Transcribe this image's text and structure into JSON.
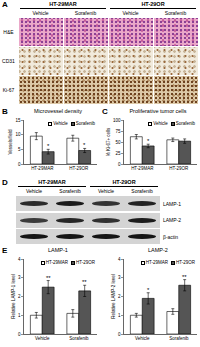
{
  "figure": {
    "A": {
      "label": "A",
      "groups": [
        "HT-29MAR",
        "HT-29OR"
      ],
      "columns": [
        "Vehicle",
        "Sorafenib",
        "Vehicle",
        "Sorafenib"
      ],
      "rows": [
        "H&E",
        "CD31",
        "Ki-67"
      ]
    },
    "D": {
      "label": "D",
      "groups": [
        "HT-29MAR",
        "HT-29OR"
      ],
      "lanes": [
        "Vehicle",
        "Sorafenib",
        "Vehicle",
        "Sorafenib"
      ],
      "bands": [
        "LAMP-1",
        "LAMP-2",
        "β-actin"
      ]
    }
  },
  "chart_data": [
    {
      "panel": "B",
      "type": "bar",
      "title": "Microvessel density",
      "y_label": "Vessels/field",
      "categories": [
        "HT-29MAR",
        "HT-29OR"
      ],
      "series": [
        {
          "name": "Vehicle",
          "color": "#ffffff",
          "values": [
            9.5,
            8.8
          ],
          "errors": [
            1.2,
            1.0
          ]
        },
        {
          "name": "Sorafenib",
          "color": "#555555",
          "values": [
            4.2,
            4.6
          ],
          "errors": [
            0.8,
            0.7
          ],
          "marks": [
            "*",
            "*"
          ]
        }
      ],
      "ylim": [
        0,
        15
      ],
      "yticks": [
        0,
        5,
        10,
        15
      ],
      "grid": false,
      "legend": "top right"
    },
    {
      "panel": "C",
      "type": "bar",
      "title": "Proliferative tumor cells",
      "y_label": "% Ki-67+ cells",
      "categories": [
        "HT-29MAR",
        "HT-29OR"
      ],
      "series": [
        {
          "name": "Vehicle",
          "color": "#ffffff",
          "values": [
            62,
            55
          ],
          "errors": [
            5,
            4
          ]
        },
        {
          "name": "Sorafenib",
          "color": "#555555",
          "values": [
            41,
            52
          ],
          "errors": [
            4,
            5
          ],
          "marks": [
            "*",
            null
          ]
        }
      ],
      "ylim": [
        0,
        100
      ],
      "yticks": [
        0,
        25,
        50,
        75,
        100
      ],
      "grid": false,
      "legend": "top right"
    },
    {
      "panel": "E",
      "type": "bar",
      "title": "LAMP-1",
      "y_label": "Relative LAMP-1 level",
      "categories": [
        "Vehicle",
        "Sorafenib"
      ],
      "series": [
        {
          "name": "HT-29MAR",
          "color": "#ffffff",
          "values": [
            1.0,
            1.1
          ],
          "errors": [
            0.15,
            0.2
          ]
        },
        {
          "name": "HT-29OR",
          "color": "#555555",
          "values": [
            2.5,
            2.3
          ],
          "errors": [
            0.35,
            0.3
          ],
          "marks": [
            "**",
            "**"
          ]
        }
      ],
      "ylim": [
        0,
        4
      ],
      "yticks": [
        0,
        1,
        2,
        3,
        4
      ],
      "grid": false,
      "legend": "top right"
    },
    {
      "title": "LAMP-2",
      "type": "bar",
      "y_label": "Relative LAMP-2 level",
      "categories": [
        "Vehicle",
        "Sorafenib"
      ],
      "series": [
        {
          "name": "HT-29MAR",
          "color": "#ffffff",
          "values": [
            1.0,
            1.2
          ],
          "errors": [
            0.1,
            0.15
          ]
        },
        {
          "name": "HT-29OR",
          "color": "#555555",
          "values": [
            1.9,
            2.6
          ],
          "errors": [
            0.3,
            0.3
          ],
          "marks": [
            "*",
            "**"
          ]
        }
      ],
      "ylim": [
        0,
        4
      ],
      "yticks": [
        0,
        1,
        2,
        3,
        4
      ],
      "grid": false,
      "legend": "top right"
    }
  ]
}
